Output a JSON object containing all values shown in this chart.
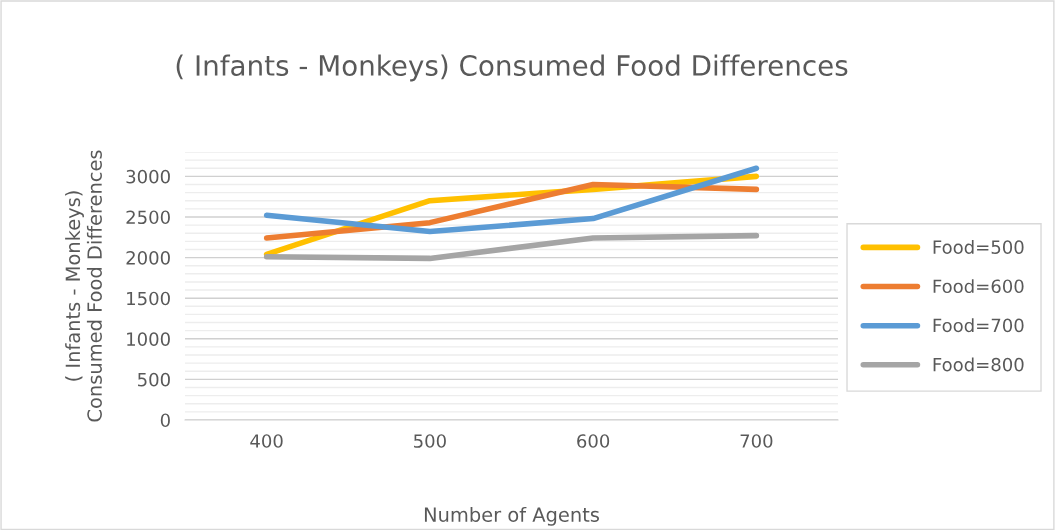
{
  "chart_data": {
    "type": "line",
    "title": "( Infants - Monkeys) Consumed Food Differences",
    "xlabel": "Number of Agents",
    "ylabel": "( Infants - Monkeys)\nConsumed Food Differences",
    "categories": [
      "400",
      "500",
      "600",
      "700"
    ],
    "series": [
      {
        "name": "Food=500",
        "color": "#ffc000",
        "values": [
          2040,
          2700,
          2840,
          3000
        ]
      },
      {
        "name": "Food=600",
        "color": "#ed7d31",
        "values": [
          2240,
          2430,
          2900,
          2840
        ]
      },
      {
        "name": "Food=700",
        "color": "#5b9bd5",
        "values": [
          2520,
          2320,
          2480,
          3100
        ]
      },
      {
        "name": "Food=800",
        "color": "#a5a5a5",
        "values": [
          2010,
          1990,
          2240,
          2270
        ]
      }
    ],
    "ylim": [
      0,
      3300
    ],
    "yticks": [
      0,
      {
        "value": 100,
        "label": null
      },
      {
        "value": 200,
        "label": null
      },
      {
        "value": 300,
        "label": null
      },
      {
        "value": 400,
        "label": null
      },
      500,
      {
        "value": 600,
        "label": null
      },
      {
        "value": 700,
        "label": null
      },
      {
        "value": 800,
        "label": null
      },
      {
        "value": 900,
        "label": null
      },
      1000,
      {
        "value": 1100,
        "label": null
      },
      {
        "value": 1200,
        "label": null
      },
      {
        "value": 1300,
        "label": null
      },
      {
        "value": 1400,
        "label": null
      },
      1500,
      {
        "value": 1600,
        "label": null
      },
      {
        "value": 1700,
        "label": null
      },
      {
        "value": 1800,
        "label": null
      },
      {
        "value": 1900,
        "label": null
      },
      2000,
      {
        "value": 2100,
        "label": null
      },
      {
        "value": 2200,
        "label": null
      },
      {
        "value": 2300,
        "label": null
      },
      {
        "value": 2400,
        "label": null
      },
      2500,
      {
        "value": 2600,
        "label": null
      },
      {
        "value": 2700,
        "label": null
      },
      {
        "value": 2800,
        "label": null
      },
      {
        "value": 2900,
        "label": null
      },
      3000,
      {
        "value": 3100,
        "label": null
      },
      {
        "value": 3200,
        "label": null
      },
      {
        "value": 3300,
        "label": null
      }
    ],
    "grid": "y",
    "legend": "right",
    "marker": "none",
    "line_style": "solid"
  }
}
